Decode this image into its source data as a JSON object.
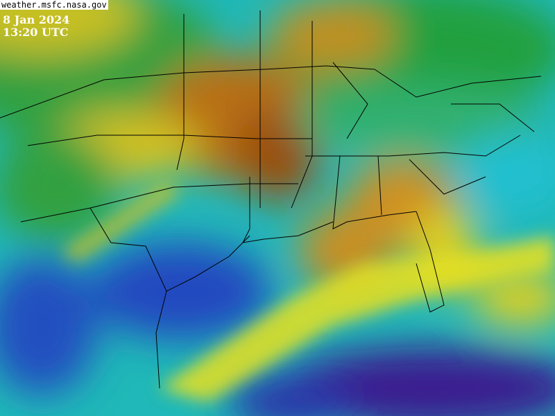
{
  "overlay": {
    "source": "weather.msfc.nasa.gov",
    "date": "8 Jan 2024",
    "time": "13:20 UTC"
  },
  "imagery": {
    "type": "infrared satellite composite, false-color enhanced",
    "colors": {
      "warm_clear": "#3a1a90",
      "ocean_blue": "#2048c0",
      "cyan": "#20c8c8",
      "green": "#18a038",
      "yellow": "#e8e020",
      "orange": "#d09018",
      "brown": "#9a5010",
      "borders": "#000000"
    }
  }
}
